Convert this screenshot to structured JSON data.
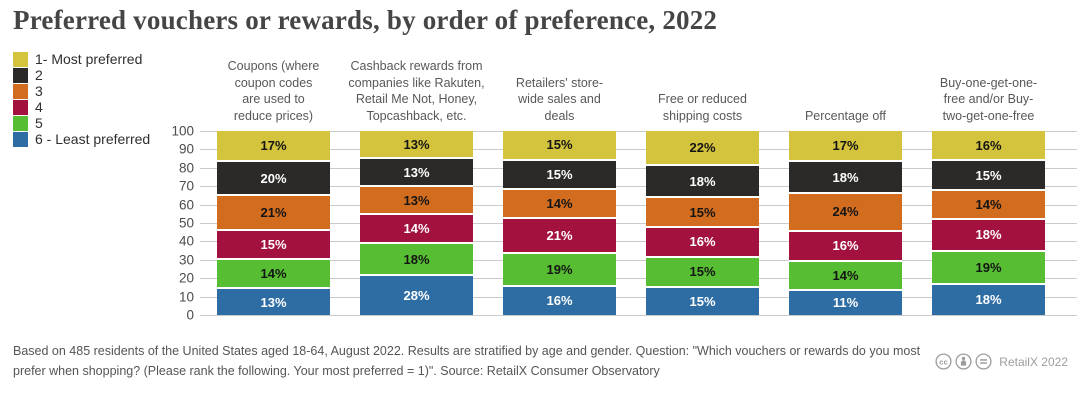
{
  "title": "Preferred vouchers or rewards, by order of preference, 2022",
  "chart_data": {
    "type": "bar",
    "stacked": true,
    "title": "Preferred vouchers or rewards, by order of preference, 2022",
    "categories": [
      "Coupons (where\ncoupon codes\nare used to\nreduce prices)",
      "Cashback rewards from\ncompanies like Rakuten,\nRetail Me Not, Honey,\nTopcashback, etc.",
      "Retailers' store-\nwide sales and\ndeals",
      "Free or reduced\nshipping costs",
      "Percentage off",
      "Buy-one-get-one-\nfree and/or Buy-\ntwo-get-one-free"
    ],
    "series": [
      {
        "name": "1- Most preferred",
        "color": "#d4c33c",
        "label_color": "#141414",
        "values": [
          17,
          13,
          15,
          22,
          17,
          16
        ]
      },
      {
        "name": "2",
        "color": "#2b2a28",
        "label_color": "#ffffff",
        "values": [
          20,
          13,
          15,
          18,
          18,
          15
        ]
      },
      {
        "name": "3",
        "color": "#d26d1f",
        "label_color": "#141414",
        "values": [
          21,
          13,
          14,
          15,
          24,
          14
        ]
      },
      {
        "name": "4",
        "color": "#a3123f",
        "label_color": "#ffffff",
        "values": [
          15,
          14,
          21,
          16,
          16,
          18
        ]
      },
      {
        "name": "5",
        "color": "#57be33",
        "label_color": "#141414",
        "values": [
          14,
          18,
          19,
          15,
          14,
          19
        ]
      },
      {
        "name": "6 - Least preferred",
        "color": "#2e6da4",
        "label_color": "#ffffff",
        "values": [
          13,
          28,
          16,
          15,
          11,
          18
        ]
      }
    ],
    "value_suffix": "%",
    "ylim": [
      0,
      100
    ],
    "ytick_step": 10,
    "grid": true,
    "legend_position": "top-left"
  },
  "footer": {
    "note": "Based on 485 residents of the United States aged 18-64, August 2022. Results are stratified by age and gender. Question: \"Which vouchers or rewards do you most prefer when shopping? (Please rank the following. Your most preferred = 1)\". Source: RetailX Consumer Observatory",
    "license": "CC BY-ND",
    "license_icons": [
      "cc",
      "attribution",
      "no-derivatives"
    ],
    "credit": "RetailX 2022"
  }
}
